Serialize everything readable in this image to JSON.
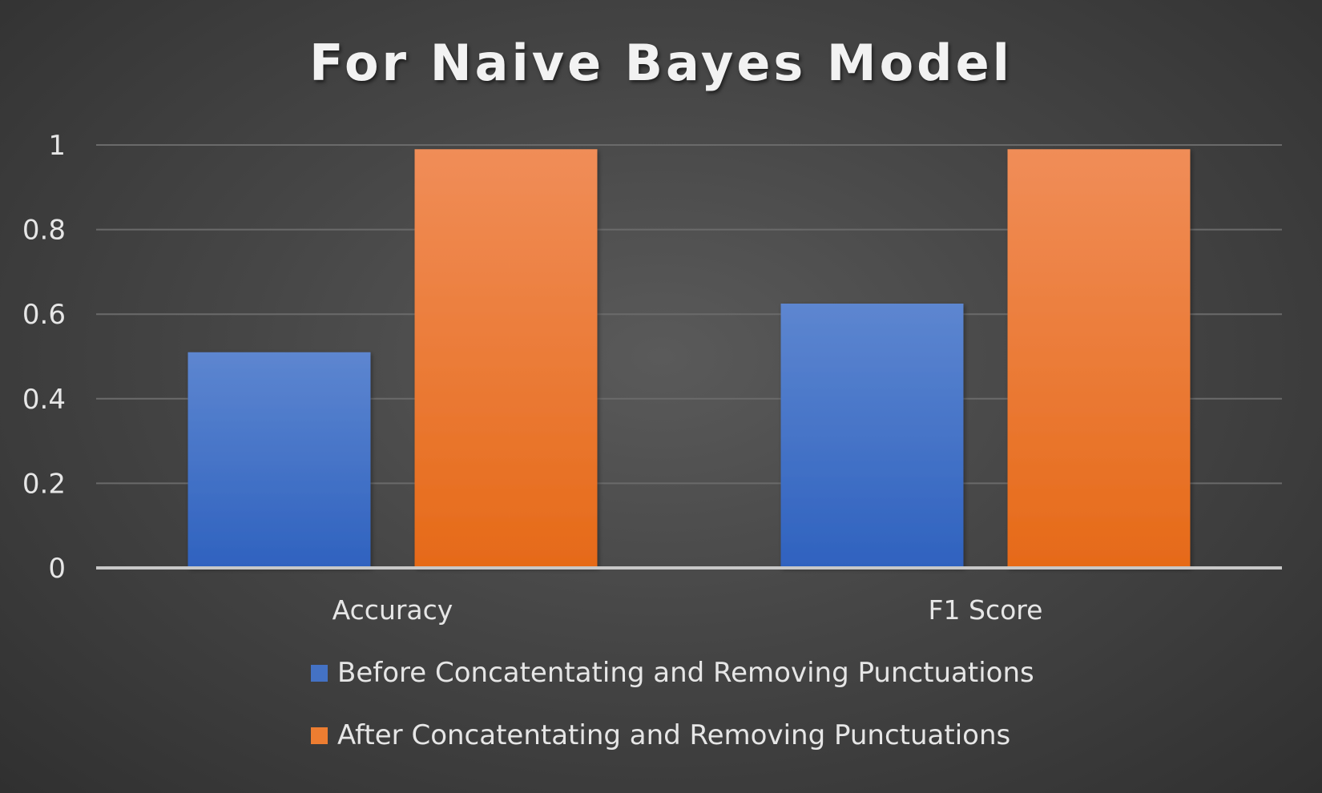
{
  "chart_data": {
    "type": "bar",
    "title": "For Naive Bayes Model",
    "categories": [
      "Accuracy",
      "F1 Score"
    ],
    "series": [
      {
        "name": "Before Concatentating and Removing Punctuations",
        "values": [
          0.51,
          0.625
        ],
        "color": "#4472c4"
      },
      {
        "name": "After Concatentating and Removing Punctuations",
        "values": [
          0.99,
          0.99
        ],
        "color": "#ed7d31"
      }
    ],
    "xlabel": "",
    "ylabel": "",
    "ylim": [
      0,
      1
    ],
    "yticks": [
      "0",
      "0.2",
      "0.4",
      "0.6",
      "0.8",
      "1"
    ],
    "grid": true,
    "legend_position": "bottom"
  }
}
